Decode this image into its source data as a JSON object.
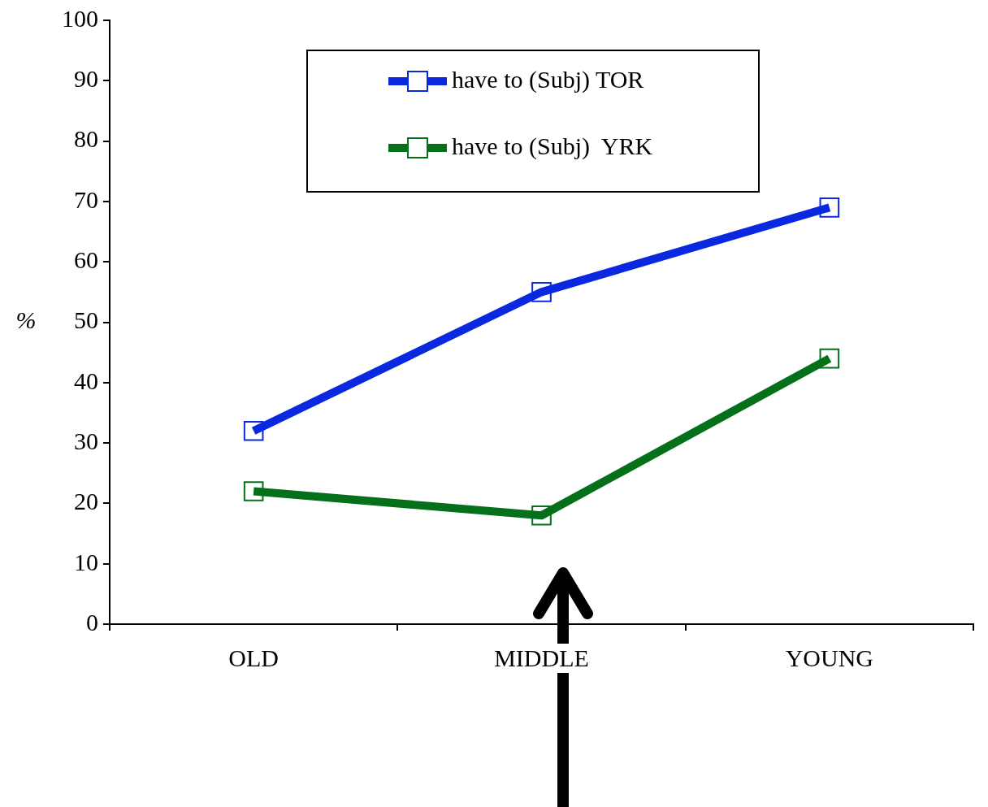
{
  "chart_data": {
    "type": "line",
    "ylabel": "%",
    "categories": [
      "OLD",
      "MIDDLE",
      "YOUNG"
    ],
    "series": [
      {
        "name": "have to (Subj) TOR",
        "color": "#0a28e0",
        "values": [
          32,
          55,
          69
        ]
      },
      {
        "name": "have to (Subj)  YRK",
        "color": "#05701a",
        "values": [
          22,
          18,
          44
        ]
      }
    ],
    "ylim": [
      0,
      100
    ],
    "yticks": [
      0,
      10,
      20,
      30,
      40,
      50,
      60,
      70,
      80,
      90,
      100
    ],
    "grid": false,
    "legend": "top",
    "marker": "square",
    "line_style": "solid"
  }
}
